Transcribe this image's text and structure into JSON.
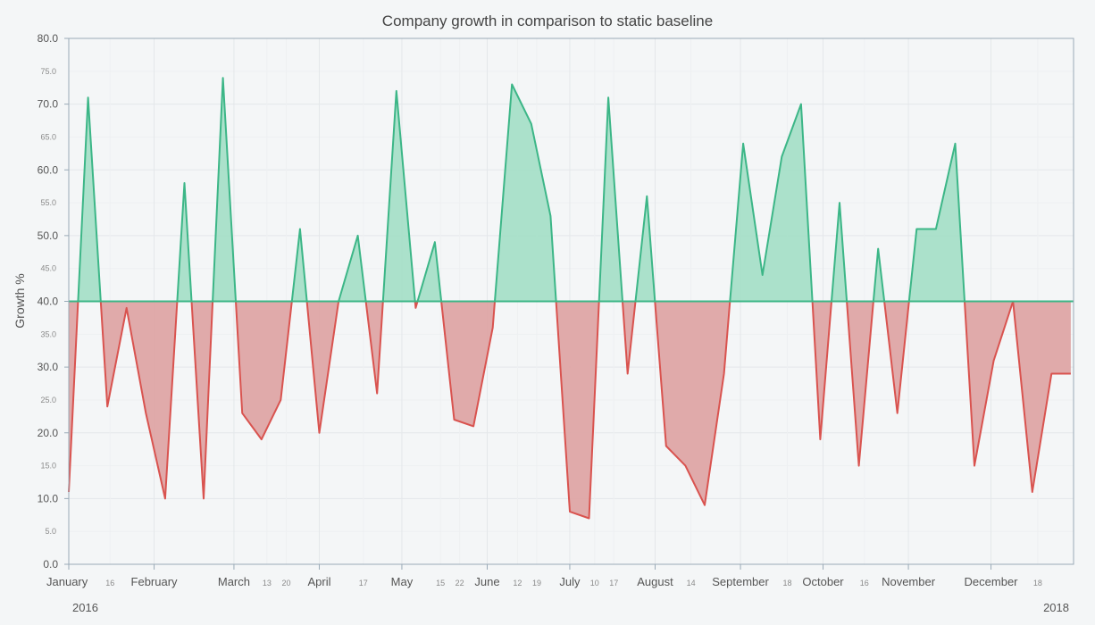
{
  "chart_data": {
    "type": "area",
    "title": "Company growth in comparison to static baseline",
    "ylabel": "Growth %",
    "xlabel": "",
    "ylim": [
      0,
      80
    ],
    "baseline": 40,
    "grid": true,
    "legend": "none",
    "y_ticks_major": [
      "0.0",
      "10.0",
      "20.0",
      "30.0",
      "40.0",
      "50.0",
      "60.0",
      "70.0",
      "80.0"
    ],
    "y_ticks_minor": [
      "5.0",
      "15.0",
      "25.0",
      "35.0",
      "45.0",
      "55.0",
      "65.0",
      "75.0"
    ],
    "x_range": [
      "2016-01-01",
      "2016-12-31"
    ],
    "month_ticks": [
      {
        "date": "2016-01-01",
        "label": "January"
      },
      {
        "date": "2016-02-01",
        "label": "February"
      },
      {
        "date": "2016-03-01",
        "label": "March"
      },
      {
        "date": "2016-04-01",
        "label": "April"
      },
      {
        "date": "2016-05-01",
        "label": "May"
      },
      {
        "date": "2016-06-01",
        "label": "June"
      },
      {
        "date": "2016-07-01",
        "label": "July"
      },
      {
        "date": "2016-08-01",
        "label": "August"
      },
      {
        "date": "2016-09-01",
        "label": "September"
      },
      {
        "date": "2016-10-01",
        "label": "October"
      },
      {
        "date": "2016-11-01",
        "label": "November"
      },
      {
        "date": "2016-12-01",
        "label": "December"
      }
    ],
    "minor_ticks": [
      {
        "date": "2016-01-16",
        "label": "16"
      },
      {
        "date": "2016-03-13",
        "label": "13"
      },
      {
        "date": "2016-03-20",
        "label": "20"
      },
      {
        "date": "2016-04-17",
        "label": "17"
      },
      {
        "date": "2016-05-15",
        "label": "15"
      },
      {
        "date": "2016-05-22",
        "label": "22"
      },
      {
        "date": "2016-06-12",
        "label": "12"
      },
      {
        "date": "2016-06-19",
        "label": "19"
      },
      {
        "date": "2016-07-10",
        "label": "10"
      },
      {
        "date": "2016-07-17",
        "label": "17"
      },
      {
        "date": "2016-08-14",
        "label": "14"
      },
      {
        "date": "2016-09-18",
        "label": "18"
      },
      {
        "date": "2016-10-16",
        "label": "16"
      },
      {
        "date": "2016-12-18",
        "label": "18"
      }
    ],
    "year_labels": {
      "start": "2016",
      "end": "2018"
    },
    "colors": {
      "above_line": "#3cb687",
      "above_fill": "#a7dfc8",
      "below_line": "#d9534f",
      "below_fill": "#dea5a5",
      "baseline": "#3cb687",
      "grid": "#e4e7ea",
      "axis": "#9aaab7"
    },
    "series": [
      {
        "x": [
          "2016-01-01",
          "2016-01-08",
          "2016-01-15",
          "2016-01-22",
          "2016-01-29",
          "2016-02-05",
          "2016-02-12",
          "2016-02-19",
          "2016-02-26",
          "2016-03-04",
          "2016-03-11",
          "2016-03-18",
          "2016-03-25",
          "2016-04-01",
          "2016-04-08",
          "2016-04-15",
          "2016-04-22",
          "2016-04-29",
          "2016-05-06",
          "2016-05-13",
          "2016-05-20",
          "2016-05-27",
          "2016-06-03",
          "2016-06-10",
          "2016-06-17",
          "2016-06-24",
          "2016-07-01",
          "2016-07-08",
          "2016-07-15",
          "2016-07-22",
          "2016-07-29",
          "2016-08-05",
          "2016-08-12",
          "2016-08-19",
          "2016-08-26",
          "2016-09-02",
          "2016-09-09",
          "2016-09-16",
          "2016-09-23",
          "2016-09-30",
          "2016-10-07",
          "2016-10-14",
          "2016-10-21",
          "2016-10-28",
          "2016-11-04",
          "2016-11-11",
          "2016-11-18",
          "2016-11-25",
          "2016-12-02",
          "2016-12-09",
          "2016-12-16",
          "2016-12-23",
          "2016-12-30"
        ],
        "values": [
          11,
          71,
          24,
          39,
          23,
          10,
          58,
          10,
          74,
          23,
          19,
          25,
          51,
          20,
          40,
          50,
          26,
          72,
          39,
          49,
          22,
          21,
          36,
          73,
          67,
          53,
          8,
          7,
          71,
          29,
          56,
          18,
          15,
          9,
          29,
          64,
          44,
          62,
          70,
          19,
          55,
          15,
          48,
          23,
          51,
          51,
          64,
          15,
          31,
          40,
          11,
          29,
          29
        ]
      }
    ]
  }
}
